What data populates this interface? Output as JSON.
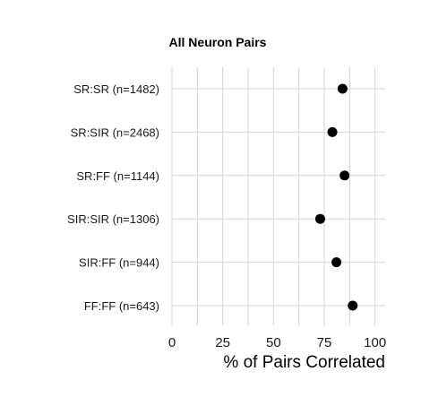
{
  "chart_data": {
    "type": "scatter",
    "title": "All Neuron Pairs",
    "xlabel": "% of Pairs Correlated",
    "ylabel": "",
    "xlim": [
      0,
      105
    ],
    "xticks": [
      0,
      25,
      50,
      75,
      100
    ],
    "grid": true,
    "categories": [
      "SR:SR (n=1482)",
      "SR:SIR (n=2468)",
      "SR:FF (n=1144)",
      "SIR:SIR (n=1306)",
      "SIR:FF (n=944)",
      "FF:FF (n=643)"
    ],
    "values": [
      84,
      79,
      85,
      73,
      81,
      89
    ],
    "point_color": "#000000"
  }
}
